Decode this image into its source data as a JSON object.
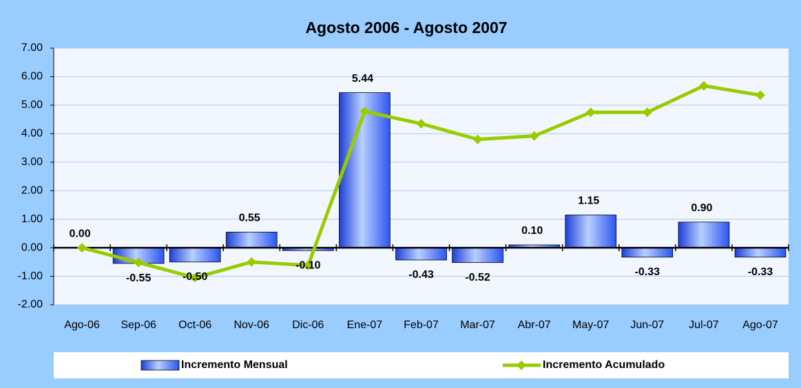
{
  "chart_data": {
    "type": "bar",
    "title": "Agosto 2006 - Agosto 2007",
    "categories": [
      "Ago-06",
      "Sep-06",
      "Oct-06",
      "Nov-06",
      "Dic-06",
      "Ene-07",
      "Feb-07",
      "Mar-07",
      "Abr-07",
      "May-07",
      "Jun-07",
      "Jul-07",
      "Ago-07"
    ],
    "series": [
      {
        "name": "Incremento Mensual",
        "type": "bar",
        "color": "#3366ff",
        "values": [
          0,
          -0.55,
          -0.5,
          0.55,
          -0.1,
          5.44,
          -0.43,
          -0.52,
          0.1,
          1.15,
          -0.33,
          0.9,
          -0.33
        ],
        "value_labels": [
          "0.00",
          "-0.55",
          "-0.50",
          "0.55",
          "-0.10",
          "5.44",
          "-0.43",
          "-0.52",
          "0.10",
          "1.15",
          "-0.33",
          "0.90",
          "-0.33"
        ]
      },
      {
        "name": "Incremento Acumulado",
        "type": "line",
        "color": "#99cc00",
        "values": [
          0,
          -0.52,
          -1.05,
          -0.5,
          -0.62,
          4.78,
          4.35,
          3.8,
          3.92,
          4.75,
          4.75,
          5.68,
          5.35
        ]
      }
    ],
    "ylim": [
      -2,
      7
    ],
    "yticks": [
      {
        "value": -2,
        "label": "-2.00"
      },
      {
        "value": -1,
        "label": "-1.00"
      },
      {
        "value": 0,
        "label": "0.00"
      },
      {
        "value": 1,
        "label": "1.00"
      },
      {
        "value": 2,
        "label": "2.00"
      },
      {
        "value": 3,
        "label": "3.00"
      },
      {
        "value": 4,
        "label": "4.00"
      },
      {
        "value": 5,
        "label": "5.00"
      },
      {
        "value": 6,
        "label": "6.00"
      },
      {
        "value": 7,
        "label": "7.00"
      }
    ],
    "grid": true,
    "legend": "bottom"
  }
}
